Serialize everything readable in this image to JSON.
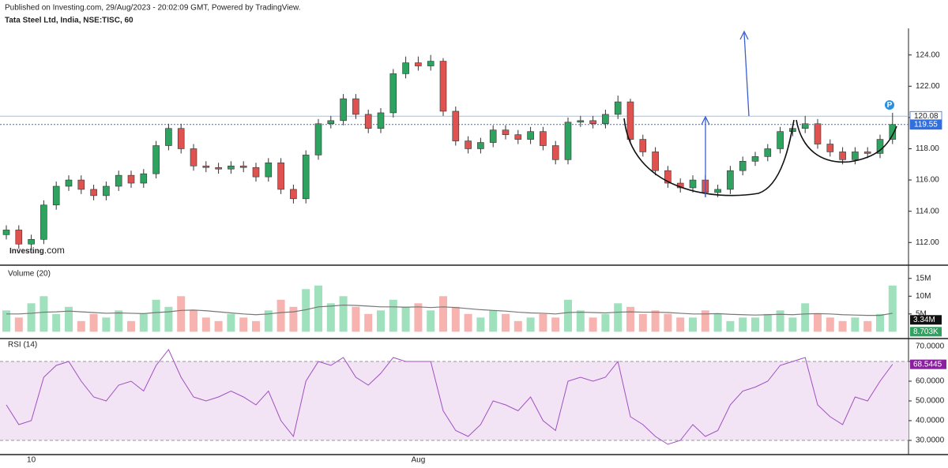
{
  "chart_data": {
    "type": "candlestick",
    "header": "Published on Investing.com, 29/Aug/2023 - 20:02:09 GMT, Powered by TradingView.",
    "title": "Tata Steel Ltd, India, NSE:TISC, 60",
    "watermark": [
      "Investing",
      ".com"
    ],
    "badge": "P",
    "up_color": "#2ea25f",
    "down_color": "#e0524f",
    "categories": [
      null,
      null,
      "10",
      null,
      null,
      null,
      null,
      null,
      null,
      null,
      null,
      null,
      null,
      null,
      null,
      null,
      null,
      null,
      null,
      null,
      null,
      null,
      null,
      null,
      null,
      null,
      null,
      null,
      null,
      null,
      null,
      null,
      null,
      "Aug",
      null,
      null,
      null,
      null,
      null,
      null,
      null,
      null,
      null,
      null,
      null,
      null,
      null,
      null,
      null,
      null,
      null,
      null,
      null,
      null,
      null,
      null,
      null,
      null,
      null,
      null,
      null,
      null,
      null,
      null,
      null,
      null,
      null,
      null,
      null,
      null,
      null,
      null
    ],
    "open": [
      112.5,
      112.8,
      111.9,
      112.2,
      114.4,
      115.6,
      116.0,
      115.4,
      115.0,
      115.6,
      116.3,
      115.8,
      116.4,
      118.2,
      119.3,
      118.0,
      116.9,
      116.8,
      116.7,
      116.9,
      116.8,
      116.2,
      117.1,
      115.4,
      114.8,
      117.6,
      119.6,
      119.8,
      121.2,
      120.2,
      119.3,
      120.3,
      122.8,
      123.5,
      123.3,
      123.6,
      120.4,
      118.5,
      118.0,
      118.4,
      119.2,
      118.9,
      118.6,
      119.1,
      118.2,
      117.3,
      119.7,
      119.8,
      119.6,
      120.2,
      121.0,
      118.6,
      117.8,
      116.6,
      115.8,
      115.5,
      116.0,
      115.2,
      115.4,
      116.6,
      117.2,
      117.5,
      118.0,
      119.1,
      119.3,
      119.6,
      118.3,
      117.8,
      117.3,
      117.8,
      117.7,
      118.6
    ],
    "high": [
      113.1,
      113.1,
      112.5,
      114.7,
      115.9,
      116.3,
      116.3,
      115.7,
      115.9,
      116.6,
      116.6,
      116.7,
      118.5,
      119.6,
      119.6,
      118.3,
      117.2,
      117.1,
      117.2,
      117.2,
      117.1,
      117.4,
      117.4,
      115.7,
      117.9,
      119.9,
      120.1,
      121.5,
      121.5,
      120.5,
      120.6,
      123.1,
      123.9,
      123.9,
      124.0,
      123.8,
      120.7,
      118.8,
      118.7,
      119.5,
      119.5,
      119.2,
      119.4,
      119.4,
      118.5,
      120.0,
      120.1,
      120.1,
      120.5,
      121.4,
      121.2,
      118.9,
      118.1,
      116.9,
      116.1,
      116.3,
      116.3,
      115.7,
      116.9,
      117.5,
      117.8,
      118.3,
      119.4,
      119.6,
      120.1,
      119.9,
      118.6,
      118.1,
      118.1,
      118.1,
      118.9,
      120.3
    ],
    "low": [
      112.2,
      111.6,
      111.6,
      111.9,
      114.1,
      115.3,
      115.1,
      114.7,
      114.7,
      115.3,
      115.5,
      115.5,
      116.1,
      117.9,
      117.7,
      116.6,
      116.5,
      116.4,
      116.4,
      116.5,
      115.9,
      115.9,
      115.1,
      114.5,
      114.5,
      117.3,
      119.3,
      119.5,
      119.9,
      119.0,
      119.0,
      120.0,
      122.5,
      123.0,
      123.0,
      120.1,
      118.2,
      117.7,
      117.7,
      118.1,
      118.6,
      118.3,
      118.3,
      117.9,
      117.0,
      117.0,
      119.4,
      119.3,
      119.3,
      119.9,
      118.3,
      117.5,
      116.3,
      115.5,
      115.2,
      115.2,
      114.9,
      114.9,
      115.1,
      116.3,
      116.9,
      117.2,
      117.7,
      118.8,
      119.0,
      118.0,
      117.5,
      117.0,
      117.0,
      117.4,
      117.4,
      118.3
    ],
    "close": [
      112.8,
      111.9,
      112.2,
      114.4,
      115.6,
      116.0,
      115.4,
      115.0,
      115.6,
      116.3,
      115.8,
      116.4,
      118.2,
      119.3,
      118.0,
      116.9,
      116.8,
      116.7,
      116.9,
      116.8,
      116.2,
      117.1,
      115.4,
      114.8,
      117.6,
      119.6,
      119.8,
      121.2,
      120.2,
      119.3,
      120.3,
      122.8,
      123.5,
      123.3,
      123.6,
      120.4,
      118.5,
      118.0,
      118.4,
      119.2,
      118.9,
      118.6,
      119.1,
      118.2,
      117.3,
      119.7,
      119.8,
      119.6,
      120.2,
      121.0,
      118.6,
      117.8,
      116.6,
      115.8,
      115.5,
      116.0,
      115.2,
      115.4,
      116.6,
      117.2,
      117.5,
      118.0,
      119.1,
      119.3,
      119.6,
      118.3,
      117.8,
      117.3,
      117.8,
      117.7,
      118.6,
      119.55
    ],
    "ylim": [
      110.6,
      125.7
    ],
    "yticks": [
      {
        "value": 112,
        "label": "112.00"
      },
      {
        "value": 114,
        "label": "114.00"
      },
      {
        "value": 116,
        "label": "116.00"
      },
      {
        "value": 118,
        "label": "118.00"
      },
      {
        "value": 120,
        "label": "120.00"
      },
      {
        "value": 122,
        "label": "122.00"
      },
      {
        "value": 124,
        "label": "124.00"
      }
    ],
    "price_lines": [
      {
        "value": 120.08,
        "label": "120.08"
      },
      {
        "value": 119.55,
        "label": "119.55"
      }
    ],
    "volume": {
      "title": "Volume (20)",
      "values": [
        6,
        4,
        8,
        10,
        5,
        7,
        3,
        5,
        4,
        6,
        3,
        5,
        9,
        7,
        10,
        6,
        4,
        3,
        5,
        4,
        3,
        6,
        9,
        7,
        12,
        13,
        8,
        10,
        7,
        5,
        6,
        9,
        7,
        8,
        6,
        10,
        7,
        5,
        4,
        6,
        5,
        3,
        4,
        5,
        4,
        9,
        6,
        4,
        5,
        8,
        7,
        5,
        6,
        5,
        4,
        4,
        6,
        5,
        3,
        4,
        4,
        5,
        6,
        4,
        8,
        5,
        4,
        3,
        4,
        3,
        5,
        13
      ],
      "ma": [
        5,
        5,
        5.2,
        5.5,
        5.6,
        5.8,
        5.6,
        5.4,
        5.2,
        5.3,
        5.2,
        5.1,
        5.4,
        5.6,
        6,
        6.1,
        5.9,
        5.6,
        5.3,
        5,
        4.8,
        5,
        5.4,
        5.6,
        6.2,
        7,
        7.2,
        7.5,
        7.4,
        7.2,
        7,
        7,
        6.9,
        7,
        6.8,
        7,
        6.8,
        6.5,
        6.2,
        6,
        5.8,
        5.5,
        5.3,
        5.2,
        5,
        5.4,
        5.5,
        5.4,
        5.3,
        5.5,
        5.6,
        5.5,
        5.5,
        5.4,
        5.2,
        5,
        5,
        5.1,
        4.9,
        4.8,
        4.7,
        4.8,
        4.9,
        4.8,
        5,
        5.1,
        5,
        4.8,
        4.7,
        4.6,
        4.6,
        5.2
      ],
      "ma_color": "#777777",
      "ylim": [
        -1.7,
        18.5
      ],
      "yticks": [
        {
          "value": 5,
          "label": "5M"
        },
        {
          "value": 10,
          "label": "10M"
        },
        {
          "value": 15,
          "label": "15M"
        }
      ],
      "markers": [
        {
          "value": 3.34,
          "label": "3.34M"
        },
        {
          "value": 0.008703,
          "label": "8.703K"
        }
      ]
    },
    "rsi": {
      "title": "RSI (14)",
      "color": "#a050c0",
      "values": [
        48,
        38,
        40,
        62,
        68,
        70,
        60,
        52,
        50,
        58,
        60,
        55,
        68,
        76,
        62,
        52,
        50,
        52,
        55,
        52,
        48,
        55,
        40,
        32,
        60,
        70,
        68,
        72,
        62,
        58,
        64,
        72,
        70,
        70,
        70,
        45,
        35,
        32,
        38,
        50,
        48,
        45,
        52,
        40,
        35,
        60,
        62,
        60,
        62,
        70,
        42,
        38,
        32,
        28,
        30,
        38,
        32,
        35,
        48,
        55,
        57,
        60,
        68,
        70,
        72,
        48,
        42,
        38,
        52,
        50,
        60,
        68.5445
      ],
      "value_labels": {
        "71": "68.5445"
      },
      "band": [
        30,
        70
      ],
      "ylim": [
        23.2,
        81.2
      ],
      "yticks": [
        {
          "value": 30,
          "label": "30.0000"
        },
        {
          "value": 40,
          "label": "40.0000"
        },
        {
          "value": 50,
          "label": "50.0000"
        },
        {
          "value": 60,
          "label": "60.0000"
        },
        {
          "value": 70,
          "label": "70.0000"
        }
      ]
    }
  }
}
